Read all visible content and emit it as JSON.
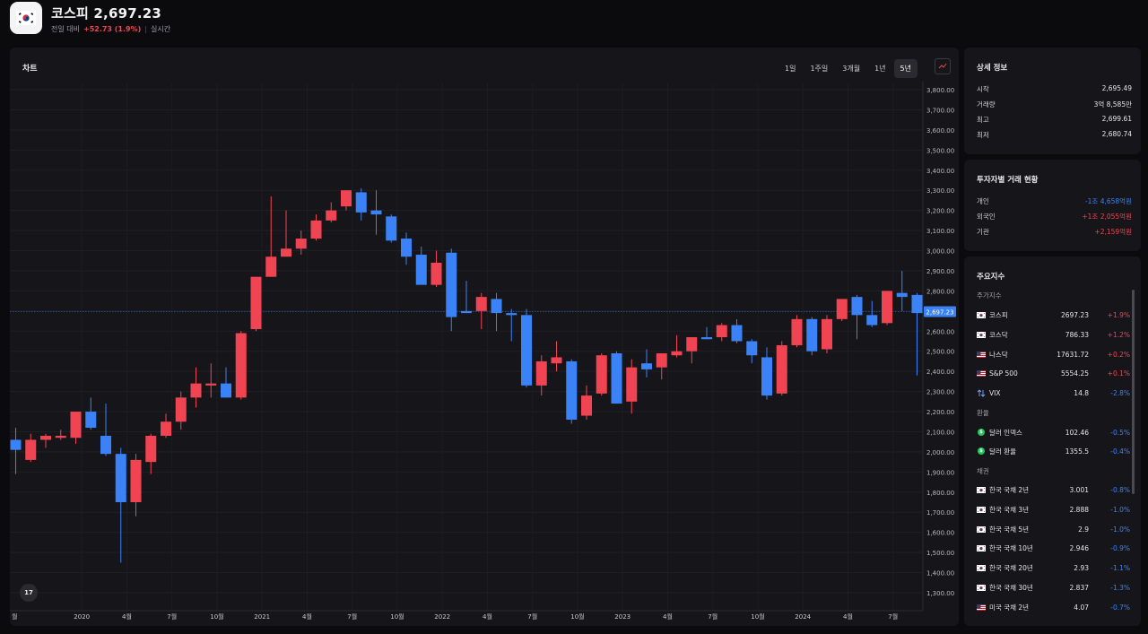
{
  "header": {
    "title": "코스피 2,697.23",
    "prev_label": "전일 대비",
    "change": "+52.73 (1.9%)",
    "separator": "|",
    "realtime": "실시간"
  },
  "chart_panel": {
    "title": "차트",
    "ranges": [
      "1일",
      "1주일",
      "3개월",
      "1년",
      "5년"
    ],
    "active_range": "5년",
    "current_price_label": "2,697.23",
    "logo_text": "17"
  },
  "chart_data": {
    "type": "candlestick",
    "up_color": "#f04452",
    "down_color": "#3b82f6",
    "ylim": [
      1250,
      3850
    ],
    "y_ticks": [
      "3,800.00",
      "3,700.00",
      "3,600.00",
      "3,500.00",
      "3,400.00",
      "3,300.00",
      "3,200.00",
      "3,100.00",
      "3,000.00",
      "2,900.00",
      "2,800.00",
      "2,700.00",
      "2,600.00",
      "2,500.00",
      "2,400.00",
      "2,300.00",
      "2,200.00",
      "2,100.00",
      "2,000.00",
      "1,900.00",
      "1,800.00",
      "1,700.00",
      "1,600.00",
      "1,500.00",
      "1,400.00",
      "1,300.00"
    ],
    "y_tick_values": [
      3800,
      3700,
      3600,
      3500,
      3400,
      3300,
      3200,
      3100,
      3000,
      2900,
      2800,
      2700,
      2600,
      2500,
      2400,
      2300,
      2200,
      2100,
      2000,
      1900,
      1800,
      1700,
      1600,
      1500,
      1400,
      1300
    ],
    "x_ticks": [
      "월",
      "2020",
      "4월",
      "7월",
      "10월",
      "2021",
      "4월",
      "7월",
      "10월",
      "2022",
      "4월",
      "7월",
      "10월",
      "2023",
      "4월",
      "7월",
      "10월",
      "2024",
      "4월",
      "7월"
    ],
    "x_tick_index": [
      -0.6,
      4.4,
      7.4,
      10.4,
      13.4,
      16.4,
      19.4,
      22.4,
      25.4,
      28.4,
      31.4,
      34.4,
      37.4,
      40.4,
      43.4,
      46.4,
      49.4,
      52.4,
      55.4,
      58.4
    ],
    "candles": [
      {
        "o": 2060,
        "h": 2120,
        "l": 1890,
        "c": 2010
      },
      {
        "o": 1960,
        "h": 2090,
        "l": 1950,
        "c": 2060
      },
      {
        "o": 2060,
        "h": 2090,
        "l": 2020,
        "c": 2080
      },
      {
        "o": 2070,
        "h": 2110,
        "l": 2060,
        "c": 2080
      },
      {
        "o": 2070,
        "h": 2200,
        "l": 2040,
        "c": 2200
      },
      {
        "o": 2200,
        "h": 2270,
        "l": 2110,
        "c": 2120
      },
      {
        "o": 2080,
        "h": 2240,
        "l": 1980,
        "c": 1990
      },
      {
        "o": 1990,
        "h": 2020,
        "l": 1450,
        "c": 1750
      },
      {
        "o": 1750,
        "h": 1990,
        "l": 1680,
        "c": 1960
      },
      {
        "o": 1950,
        "h": 2090,
        "l": 1890,
        "c": 2080
      },
      {
        "o": 2080,
        "h": 2190,
        "l": 2070,
        "c": 2150
      },
      {
        "o": 2150,
        "h": 2300,
        "l": 2110,
        "c": 2270
      },
      {
        "o": 2270,
        "h": 2420,
        "l": 2220,
        "c": 2340
      },
      {
        "o": 2330,
        "h": 2440,
        "l": 2270,
        "c": 2340
      },
      {
        "o": 2340,
        "h": 2420,
        "l": 2270,
        "c": 2270
      },
      {
        "o": 2270,
        "h": 2600,
        "l": 2260,
        "c": 2590
      },
      {
        "o": 2610,
        "h": 2870,
        "l": 2600,
        "c": 2870
      },
      {
        "o": 2870,
        "h": 3270,
        "l": 2870,
        "c": 2970
      },
      {
        "o": 2970,
        "h": 3200,
        "l": 2990,
        "c": 3010
      },
      {
        "o": 3010,
        "h": 3100,
        "l": 2980,
        "c": 3060
      },
      {
        "o": 3060,
        "h": 3180,
        "l": 3050,
        "c": 3150
      },
      {
        "o": 3150,
        "h": 3240,
        "l": 3140,
        "c": 3200
      },
      {
        "o": 3220,
        "h": 3300,
        "l": 3200,
        "c": 3300
      },
      {
        "o": 3290,
        "h": 3310,
        "l": 3150,
        "c": 3190
      },
      {
        "o": 3200,
        "h": 3300,
        "l": 3080,
        "c": 3180
      },
      {
        "o": 3170,
        "h": 3180,
        "l": 3040,
        "c": 3050
      },
      {
        "o": 3060,
        "h": 3090,
        "l": 2930,
        "c": 2970
      },
      {
        "o": 2980,
        "h": 3020,
        "l": 2850,
        "c": 2830
      },
      {
        "o": 2830,
        "h": 3000,
        "l": 2820,
        "c": 2940
      },
      {
        "o": 2990,
        "h": 3010,
        "l": 2600,
        "c": 2670
      },
      {
        "o": 2700,
        "h": 2850,
        "l": 2690,
        "c": 2690
      },
      {
        "o": 2700,
        "h": 2790,
        "l": 2610,
        "c": 2770
      },
      {
        "o": 2760,
        "h": 2790,
        "l": 2600,
        "c": 2690
      },
      {
        "o": 2690,
        "h": 2710,
        "l": 2550,
        "c": 2680
      },
      {
        "o": 2680,
        "h": 2710,
        "l": 2320,
        "c": 2330
      },
      {
        "o": 2330,
        "h": 2480,
        "l": 2280,
        "c": 2450
      },
      {
        "o": 2440,
        "h": 2550,
        "l": 2400,
        "c": 2470
      },
      {
        "o": 2450,
        "h": 2460,
        "l": 2140,
        "c": 2160
      },
      {
        "o": 2180,
        "h": 2330,
        "l": 2160,
        "c": 2280
      },
      {
        "o": 2290,
        "h": 2490,
        "l": 2280,
        "c": 2480
      },
      {
        "o": 2490,
        "h": 2500,
        "l": 2240,
        "c": 2240
      },
      {
        "o": 2250,
        "h": 2460,
        "l": 2190,
        "c": 2420
      },
      {
        "o": 2440,
        "h": 2510,
        "l": 2370,
        "c": 2410
      },
      {
        "o": 2420,
        "h": 2480,
        "l": 2360,
        "c": 2490
      },
      {
        "o": 2480,
        "h": 2580,
        "l": 2470,
        "c": 2500
      },
      {
        "o": 2500,
        "h": 2570,
        "l": 2440,
        "c": 2570
      },
      {
        "o": 2570,
        "h": 2620,
        "l": 2560,
        "c": 2560
      },
      {
        "o": 2570,
        "h": 2640,
        "l": 2550,
        "c": 2630
      },
      {
        "o": 2630,
        "h": 2660,
        "l": 2540,
        "c": 2550
      },
      {
        "o": 2550,
        "h": 2560,
        "l": 2440,
        "c": 2480
      },
      {
        "o": 2470,
        "h": 2520,
        "l": 2260,
        "c": 2280
      },
      {
        "o": 2290,
        "h": 2550,
        "l": 2280,
        "c": 2530
      },
      {
        "o": 2530,
        "h": 2680,
        "l": 2520,
        "c": 2660
      },
      {
        "o": 2660,
        "h": 2670,
        "l": 2480,
        "c": 2500
      },
      {
        "o": 2510,
        "h": 2680,
        "l": 2490,
        "c": 2660
      },
      {
        "o": 2660,
        "h": 2760,
        "l": 2650,
        "c": 2760
      },
      {
        "o": 2770,
        "h": 2780,
        "l": 2560,
        "c": 2680
      },
      {
        "o": 2680,
        "h": 2750,
        "l": 2620,
        "c": 2630
      },
      {
        "o": 2640,
        "h": 2800,
        "l": 2630,
        "c": 2800
      },
      {
        "o": 2790,
        "h": 2900,
        "l": 2700,
        "c": 2770
      },
      {
        "o": 2780,
        "h": 2790,
        "l": 2380,
        "c": 2690
      }
    ],
    "current_price": 2697.23
  },
  "detail": {
    "title": "상세 정보",
    "rows": [
      {
        "label": "시작",
        "value": "2,695.49"
      },
      {
        "label": "거래량",
        "value": "3억 8,585만"
      },
      {
        "label": "최고",
        "value": "2,699.61"
      },
      {
        "label": "최저",
        "value": "2,680.74"
      }
    ]
  },
  "investor": {
    "title": "투자자별 거래 현황",
    "rows": [
      {
        "label": "개인",
        "value": "-1조 4,658억원",
        "dir": "down"
      },
      {
        "label": "외국인",
        "value": "+1조 2,055억원",
        "dir": "up"
      },
      {
        "label": "기관",
        "value": "+2,159억원",
        "dir": "up"
      }
    ]
  },
  "indices": {
    "title": "주요지수",
    "sections": [
      {
        "label": "주가지수",
        "rows": [
          {
            "icon": "kr-flag-icon",
            "name": "코스피",
            "value": "2697.23",
            "change": "+1.9%",
            "dir": "up"
          },
          {
            "icon": "kr-flag-icon",
            "name": "코스닥",
            "value": "786.33",
            "change": "+1.2%",
            "dir": "up"
          },
          {
            "icon": "us-flag-icon",
            "name": "나스닥",
            "value": "17631.72",
            "change": "+0.2%",
            "dir": "up"
          },
          {
            "icon": "us-flag-icon",
            "name": "S&P 500",
            "value": "5554.25",
            "change": "+0.1%",
            "dir": "up"
          },
          {
            "icon": "updown-arrows-icon",
            "name": "VIX",
            "value": "14.8",
            "change": "-2.8%",
            "dir": "down"
          }
        ]
      },
      {
        "label": "환율",
        "rows": [
          {
            "icon": "dollar-coin-icon",
            "name": "달러 인덱스",
            "value": "102.46",
            "change": "-0.5%",
            "dir": "down"
          },
          {
            "icon": "dollar-coin-icon",
            "name": "달러 환율",
            "value": "1355.5",
            "change": "-0.4%",
            "dir": "down"
          }
        ]
      },
      {
        "label": "채권",
        "rows": [
          {
            "icon": "kr-flag-icon",
            "name": "한국 국채 2년",
            "value": "3.001",
            "change": "-0.8%",
            "dir": "down"
          },
          {
            "icon": "kr-flag-icon",
            "name": "한국 국채 3년",
            "value": "2.888",
            "change": "-1.0%",
            "dir": "down"
          },
          {
            "icon": "kr-flag-icon",
            "name": "한국 국채 5년",
            "value": "2.9",
            "change": "-1.0%",
            "dir": "down"
          },
          {
            "icon": "kr-flag-icon",
            "name": "한국 국채 10년",
            "value": "2.946",
            "change": "-0.9%",
            "dir": "down"
          },
          {
            "icon": "kr-flag-icon",
            "name": "한국 국채 20년",
            "value": "2.93",
            "change": "-1.1%",
            "dir": "down"
          },
          {
            "icon": "kr-flag-icon",
            "name": "한국 국채 30년",
            "value": "2.837",
            "change": "-1.3%",
            "dir": "down"
          },
          {
            "icon": "us-flag-icon",
            "name": "미국 국채 2년",
            "value": "4.07",
            "change": "-0.7%",
            "dir": "down"
          }
        ]
      }
    ]
  }
}
